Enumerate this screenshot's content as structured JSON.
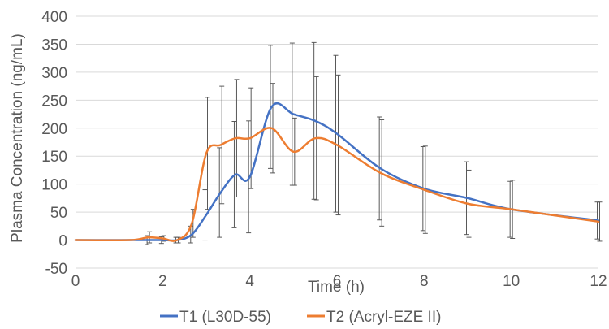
{
  "chart_data": {
    "type": "line",
    "title": "",
    "xlabel": "Time (h)",
    "ylabel": "Plasma Concentration (ng/mL)",
    "xlim": [
      0,
      12
    ],
    "ylim": [
      -50,
      400
    ],
    "x_ticks": [
      0,
      2,
      4,
      6,
      8,
      10,
      12
    ],
    "y_ticks": [
      -50,
      0,
      50,
      100,
      150,
      200,
      250,
      300,
      350,
      400
    ],
    "grid": "horizontal",
    "legend": "bottom",
    "x": [
      0,
      1.25,
      1.67,
      2,
      2.33,
      2.67,
      3,
      3.33,
      3.67,
      4,
      4.5,
      5,
      5.5,
      6,
      7,
      8,
      9,
      10,
      12
    ],
    "series": [
      {
        "name": "T1 (L30D-55)",
        "color": "#4472C4",
        "values": [
          0,
          0,
          0,
          0,
          0,
          10,
          45,
          85,
          117,
          113,
          238,
          225,
          213,
          190,
          128,
          92,
          75,
          55,
          35
        ],
        "error": [
          0,
          0,
          8,
          6,
          5,
          15,
          45,
          80,
          95,
          100,
          110,
          127,
          140,
          140,
          92,
          75,
          65,
          50,
          33
        ]
      },
      {
        "name": "T2 (Acryl-EZE II)",
        "color": "#ED7D31",
        "values": [
          0,
          0,
          5,
          3,
          0,
          30,
          155,
          170,
          182,
          182,
          200,
          158,
          182,
          170,
          120,
          90,
          65,
          55,
          33
        ],
        "error": [
          0,
          0,
          10,
          5,
          5,
          25,
          100,
          105,
          105,
          90,
          80,
          60,
          110,
          125,
          95,
          78,
          60,
          52,
          35
        ]
      }
    ]
  }
}
